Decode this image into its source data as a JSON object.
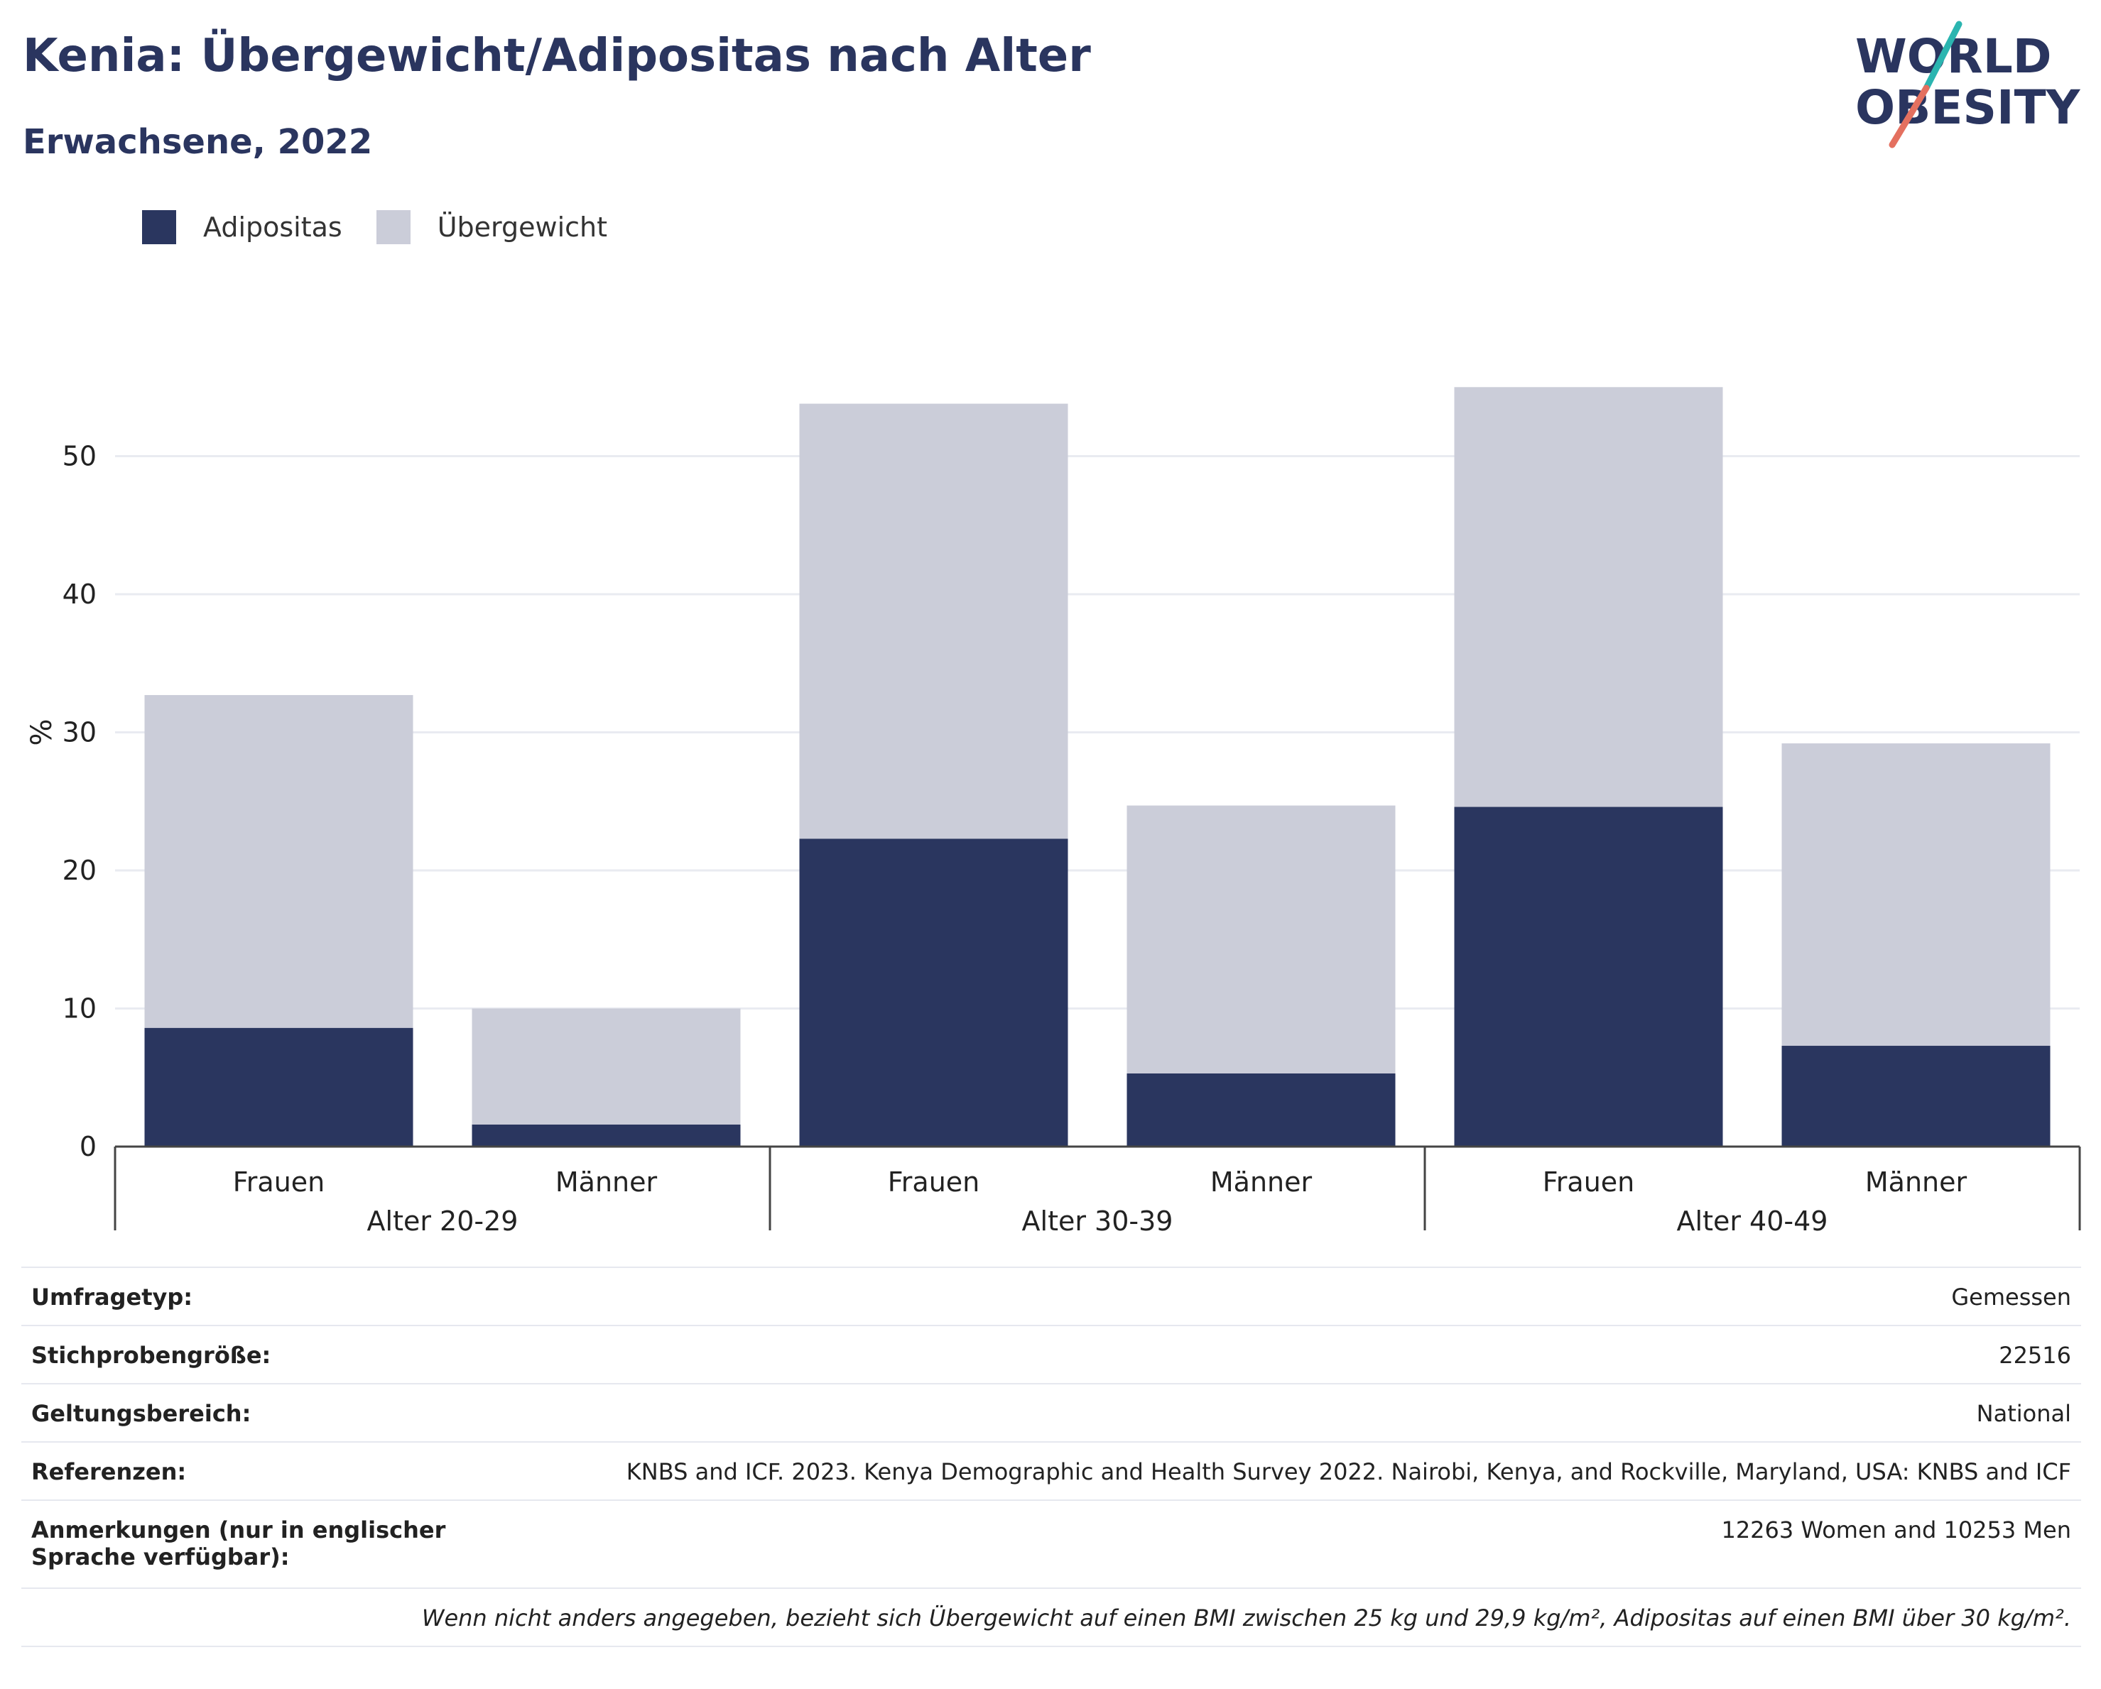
{
  "header": {
    "title": "Kenia: Übergewicht/Adipositas nach Alter",
    "subtitle": "Erwachsene, 2022"
  },
  "logo": {
    "line1": "WORLD",
    "line2": "OBESITY",
    "accent_teal": "#2bb5b0",
    "accent_coral": "#e4705f"
  },
  "legend": [
    {
      "label": "Adipositas",
      "color": "#2a365f"
    },
    {
      "label": "Übergewicht",
      "color": "#cbcdd9"
    }
  ],
  "chart_data": {
    "type": "bar",
    "stacked": true,
    "ylabel": "%",
    "ylim": [
      0,
      60
    ],
    "yticks": [
      0,
      10,
      20,
      30,
      40,
      50
    ],
    "grid": true,
    "legend_position": "top-left",
    "groups": [
      "Alter 20-29",
      "Alter 30-39",
      "Alter 40-49"
    ],
    "categories": [
      "Frauen",
      "Männer",
      "Frauen",
      "Männer",
      "Frauen",
      "Männer"
    ],
    "series": [
      {
        "name": "Adipositas",
        "color": "#2a365f",
        "values": [
          8.6,
          1.6,
          22.3,
          5.3,
          24.6,
          7.3
        ]
      },
      {
        "name": "Übergewicht",
        "color": "#cbcdd9",
        "values": [
          24.1,
          8.4,
          31.5,
          19.4,
          30.4,
          21.9
        ]
      }
    ]
  },
  "info": [
    {
      "key": "Umfragetyp:",
      "value": "Gemessen"
    },
    {
      "key": "Stichprobengröße:",
      "value": "22516"
    },
    {
      "key": "Geltungsbereich:",
      "value": "National"
    },
    {
      "key": "Referenzen:",
      "value": "KNBS and ICF. 2023. Kenya Demographic and Health Survey 2022. Nairobi, Kenya, and Rockville, Maryland, USA: KNBS and ICF"
    },
    {
      "key": "Anmerkungen (nur in englischer Sprache verfügbar):",
      "value": "12263 Women and 10253 Men"
    }
  ],
  "footnote": "Wenn nicht anders angegeben, bezieht sich Übergewicht auf einen BMI zwischen 25 kg und 29,9 kg/m², Adipositas auf einen BMI über 30 kg/m²."
}
